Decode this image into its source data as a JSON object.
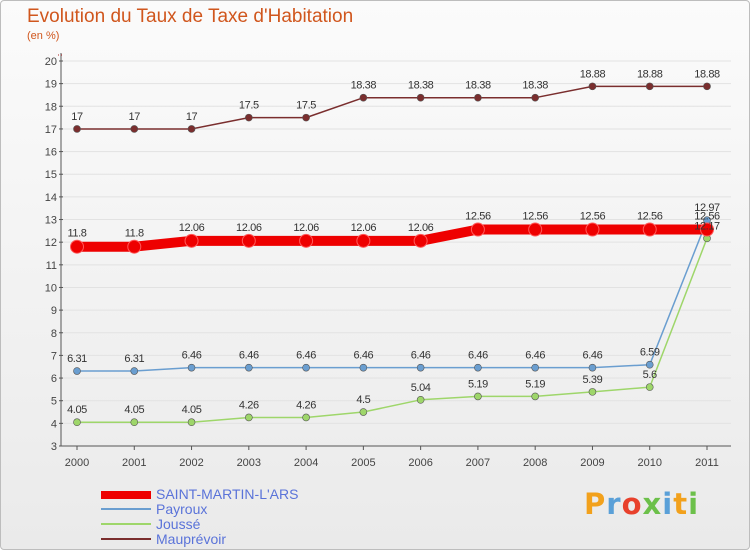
{
  "header": {
    "title": "Evolution du Taux de Taxe d'Habitation",
    "subtitle": "(en %)"
  },
  "brand": {
    "text": "Proxiti",
    "letters": [
      "P",
      "r",
      "o",
      "x",
      "i",
      "t",
      "i"
    ],
    "colors": [
      "#f2a11c",
      "#5aa0d8",
      "#e8412c",
      "#6cc04a",
      "#5aa0d8",
      "#f2a11c",
      "#6cc04a"
    ]
  },
  "chart_data": {
    "type": "line",
    "title": "Evolution du Taux de Taxe d'Habitation",
    "subtitle": "(en %)",
    "x": [
      "2000",
      "2001",
      "2002",
      "2003",
      "2004",
      "2005",
      "2006",
      "2007",
      "2008",
      "2009",
      "2010",
      "2011"
    ],
    "ylim": [
      3,
      20
    ],
    "yticks": [
      "3",
      "4",
      "5",
      "6",
      "7",
      "8",
      "9",
      "10",
      "11",
      "12",
      "13",
      "14",
      "15",
      "16",
      "17",
      "18",
      "19",
      "20"
    ],
    "grid": "horizontal",
    "legend_position": "bottom-left",
    "series": [
      {
        "name": "SAINT-MARTIN-L'ARS",
        "color": "#ee0000",
        "highlight": true,
        "values": [
          11.8,
          11.8,
          12.06,
          12.06,
          12.06,
          12.06,
          12.06,
          12.56,
          12.56,
          12.56,
          12.56,
          12.56
        ],
        "labels": [
          "11.8",
          "11.8",
          "12.06",
          "12.06",
          "12.06",
          "12.06",
          "12.06",
          "12.56",
          "12.56",
          "12.56",
          "12.56",
          "12.56"
        ]
      },
      {
        "name": "Payroux",
        "color": "#6a9ed0",
        "values": [
          6.31,
          6.31,
          6.46,
          6.46,
          6.46,
          6.46,
          6.46,
          6.46,
          6.46,
          6.46,
          6.59,
          12.97
        ],
        "labels": [
          "6.31",
          "6.31",
          "6.46",
          "6.46",
          "6.46",
          "6.46",
          "6.46",
          "6.46",
          "6.46",
          "6.46",
          "6.59",
          "12.97"
        ]
      },
      {
        "name": "Joussé",
        "color": "#9ed66a",
        "values": [
          4.05,
          4.05,
          4.05,
          4.26,
          4.26,
          4.5,
          5.04,
          5.19,
          5.19,
          5.39,
          5.6,
          12.17
        ],
        "labels": [
          "4.05",
          "4.05",
          "4.05",
          "4.26",
          "4.26",
          "4.5",
          "5.04",
          "5.19",
          "5.19",
          "5.39",
          "5.6",
          "12.17"
        ]
      },
      {
        "name": "Mauprévoir",
        "color": "#7a2e2e",
        "values": [
          17,
          17,
          17,
          17.5,
          17.5,
          18.38,
          18.38,
          18.38,
          18.38,
          18.88,
          18.88,
          18.88
        ],
        "labels": [
          "17",
          "17",
          "17",
          "17.5",
          "17.5",
          "18.38",
          "18.38",
          "18.38",
          "18.38",
          "18.88",
          "18.88",
          "18.88"
        ]
      }
    ]
  }
}
